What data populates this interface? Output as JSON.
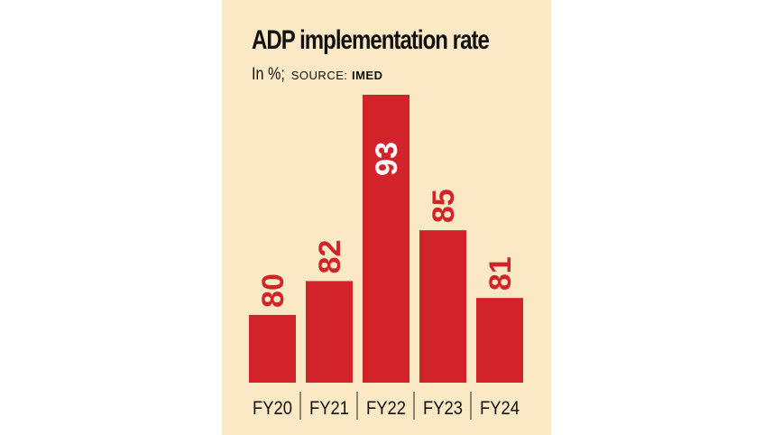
{
  "title": "ADP implementation rate",
  "subtitle": {
    "unit": "In %;",
    "source_label": "SOURCE:",
    "source_name": "IMED"
  },
  "colors": {
    "background": "#fbe8c4",
    "bar": "#d2232a",
    "text": "#111111"
  },
  "chart_data": {
    "type": "bar",
    "categories": [
      "FY20",
      "FY21",
      "FY22",
      "FY23",
      "FY24"
    ],
    "values": [
      80,
      82,
      93,
      85,
      81
    ],
    "data_labels": [
      "80",
      "82",
      "93",
      "85",
      "81"
    ],
    "title": "ADP implementation rate",
    "xlabel": "",
    "ylabel": "",
    "grid": false,
    "data_label_orientation": "rotated-vertical"
  }
}
